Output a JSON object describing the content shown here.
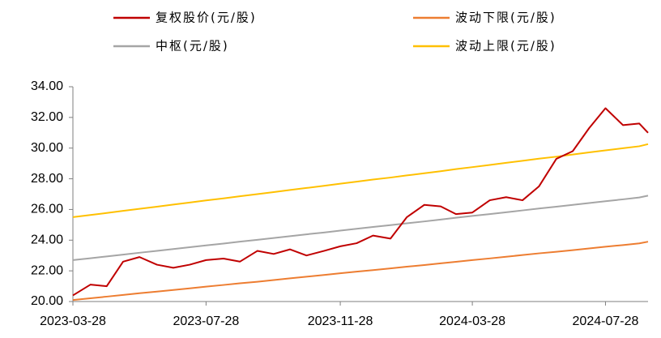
{
  "chart_data": {
    "type": "line",
    "x": [
      "2023-03-28",
      "2023-04-13",
      "2023-04-28",
      "2023-05-13",
      "2023-05-28",
      "2023-06-13",
      "2023-06-28",
      "2023-07-13",
      "2023-07-28",
      "2023-08-13",
      "2023-08-28",
      "2023-09-13",
      "2023-09-28",
      "2023-10-13",
      "2023-10-28",
      "2023-11-13",
      "2023-11-28",
      "2023-12-13",
      "2023-12-28",
      "2024-01-13",
      "2024-01-28",
      "2024-02-13",
      "2024-02-28",
      "2024-03-13",
      "2024-03-28",
      "2024-04-13",
      "2024-04-28",
      "2024-05-13",
      "2024-05-28",
      "2024-06-13",
      "2024-06-28",
      "2024-07-13",
      "2024-07-28",
      "2024-08-13",
      "2024-08-28",
      "2024-09-05"
    ],
    "series": [
      {
        "name": "复权股价(元/股)",
        "color": "#c00000",
        "values": [
          20.4,
          21.1,
          21.0,
          22.6,
          22.9,
          22.4,
          22.2,
          22.4,
          22.7,
          22.8,
          22.6,
          23.3,
          23.1,
          23.4,
          23.0,
          23.3,
          23.6,
          23.8,
          24.3,
          24.1,
          25.5,
          26.3,
          26.2,
          25.7,
          25.8,
          26.6,
          26.8,
          26.6,
          27.5,
          29.3,
          29.8,
          31.3,
          32.6,
          31.5,
          31.6,
          31.0
        ]
      },
      {
        "name": "波动下限(元/股)",
        "color": "#ed7d31",
        "values": [
          20.1,
          20.21,
          20.32,
          20.43,
          20.54,
          20.65,
          20.75,
          20.86,
          20.97,
          21.08,
          21.19,
          21.29,
          21.4,
          21.51,
          21.62,
          21.73,
          21.84,
          21.95,
          22.05,
          22.16,
          22.27,
          22.38,
          22.49,
          22.59,
          22.7,
          22.81,
          22.92,
          23.03,
          23.14,
          23.24,
          23.35,
          23.46,
          23.57,
          23.68,
          23.79,
          23.9
        ]
      },
      {
        "name": "中枢(元/股)",
        "color": "#a5a5a5",
        "values": [
          22.7,
          22.82,
          22.94,
          23.06,
          23.18,
          23.3,
          23.42,
          23.54,
          23.66,
          23.78,
          23.9,
          24.02,
          24.14,
          24.26,
          24.38,
          24.5,
          24.62,
          24.74,
          24.86,
          24.98,
          25.1,
          25.22,
          25.34,
          25.46,
          25.58,
          25.7,
          25.82,
          25.94,
          26.06,
          26.18,
          26.3,
          26.42,
          26.54,
          26.66,
          26.78,
          26.9
        ]
      },
      {
        "name": "波动上限(元/股)",
        "color": "#ffc000",
        "values": [
          25.5,
          25.64,
          25.77,
          25.91,
          26.04,
          26.18,
          26.32,
          26.45,
          26.59,
          26.72,
          26.86,
          27.0,
          27.13,
          27.27,
          27.4,
          27.54,
          27.68,
          27.81,
          27.95,
          28.08,
          28.22,
          28.36,
          28.49,
          28.63,
          28.76,
          28.9,
          29.04,
          29.17,
          29.31,
          29.44,
          29.58,
          29.72,
          29.85,
          29.99,
          30.12,
          30.26
        ]
      }
    ],
    "xlim": [
      "2023-03-28",
      "2024-09-05"
    ],
    "xticks": [
      "2023-03-28",
      "2023-07-28",
      "2023-11-28",
      "2024-03-28",
      "2024-07-28"
    ],
    "ylim": [
      20,
      34
    ],
    "yticks": [
      {
        "value": 20,
        "label": "20.00"
      },
      {
        "value": 22,
        "label": "22.00"
      },
      {
        "value": 24,
        "label": "24.00"
      },
      {
        "value": 26,
        "label": "26.00"
      },
      {
        "value": 28,
        "label": "28.00"
      },
      {
        "value": 30,
        "label": "30.00"
      },
      {
        "value": 32,
        "label": "32.00"
      },
      {
        "value": 34,
        "label": "34.00"
      }
    ],
    "grid": false
  }
}
